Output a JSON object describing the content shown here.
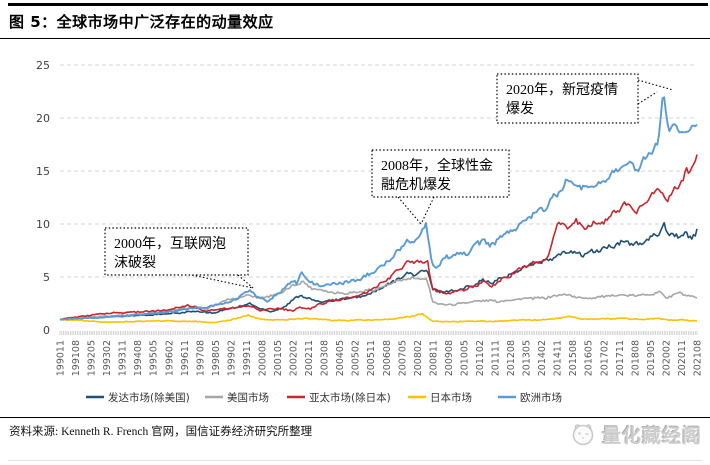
{
  "figure": {
    "title": "图 5：全球市场中广泛存在的动量效应",
    "source_note": "资料来源: Kenneth R. French 官网，国信证券经济研究所整理",
    "watermark": "量化藏经阁"
  },
  "chart_data": {
    "type": "line",
    "title": "全球市场中广泛存在的动量效应",
    "xlabel": "",
    "ylabel": "",
    "ylim": [
      0,
      25
    ],
    "yticks": [
      0,
      5,
      10,
      15,
      20,
      25
    ],
    "grid": "horizontal-dashed",
    "legend_position": "bottom",
    "x_range": [
      1990.917,
      2021.667
    ],
    "x_tick_labels": [
      "199011",
      "199108",
      "199205",
      "199302",
      "199311",
      "199408",
      "199505",
      "199602",
      "199611",
      "199708",
      "199805",
      "199902",
      "199911",
      "200008",
      "200105",
      "200202",
      "200211",
      "200308",
      "200405",
      "200502",
      "200511",
      "200608",
      "200705",
      "200802",
      "200811",
      "200908",
      "201005",
      "201102",
      "201111",
      "201208",
      "201305",
      "201402",
      "201411",
      "201508",
      "201605",
      "201702",
      "201711",
      "201808",
      "201905",
      "202002",
      "202011",
      "202108"
    ],
    "annotations": [
      {
        "text": "2000年，互联网泡沫破裂",
        "lines": [
          "2000年，互联网泡",
          "沫破裂"
        ],
        "target_year": 2000,
        "target_value": 3.9
      },
      {
        "text": "2008年，全球性金融危机爆发",
        "lines": [
          "2008年，全球性金",
          "融危机爆发"
        ],
        "target_year": 2008.5,
        "target_value": 9.9
      },
      {
        "text": "2020年，新冠疫情爆发",
        "lines": [
          "2020年，新冠疫情",
          "爆发"
        ],
        "target_year": 2020.05,
        "target_value": 22.5
      }
    ],
    "series": [
      {
        "name": "发达市场(除美国)",
        "color": "#1F4E79",
        "points": [
          [
            1990.92,
            1.0
          ],
          [
            1992.0,
            1.1
          ],
          [
            1993.0,
            1.25
          ],
          [
            1994.5,
            1.35
          ],
          [
            1996.0,
            1.5
          ],
          [
            1997.4,
            1.75
          ],
          [
            1998.4,
            1.6
          ],
          [
            1998.9,
            2.0
          ],
          [
            1999.5,
            2.1
          ],
          [
            2000.08,
            2.5
          ],
          [
            2000.6,
            2.0
          ],
          [
            2001.1,
            1.75
          ],
          [
            2001.7,
            2.1
          ],
          [
            2002.2,
            2.9
          ],
          [
            2002.55,
            3.3
          ],
          [
            2003.0,
            2.9
          ],
          [
            2003.4,
            2.65
          ],
          [
            2004.2,
            2.85
          ],
          [
            2005.0,
            3.0
          ],
          [
            2005.6,
            3.2
          ],
          [
            2006.2,
            3.7
          ],
          [
            2006.7,
            4.2
          ],
          [
            2007.3,
            4.9
          ],
          [
            2007.8,
            5.4
          ],
          [
            2008.1,
            5.2
          ],
          [
            2008.4,
            5.5
          ],
          [
            2008.65,
            5.7
          ],
          [
            2008.9,
            3.8
          ],
          [
            2009.3,
            3.6
          ],
          [
            2009.9,
            3.7
          ],
          [
            2010.4,
            3.9
          ],
          [
            2011.0,
            4.4
          ],
          [
            2011.35,
            4.7
          ],
          [
            2011.8,
            4.4
          ],
          [
            2012.3,
            5.0
          ],
          [
            2012.8,
            5.3
          ],
          [
            2013.3,
            6.0
          ],
          [
            2013.9,
            6.3
          ],
          [
            2014.4,
            6.5
          ],
          [
            2015.0,
            7.0
          ],
          [
            2015.5,
            7.5
          ],
          [
            2016.1,
            7.1
          ],
          [
            2016.7,
            7.4
          ],
          [
            2017.2,
            7.7
          ],
          [
            2017.8,
            8.0
          ],
          [
            2018.3,
            8.4
          ],
          [
            2018.8,
            8.0
          ],
          [
            2019.3,
            8.5
          ],
          [
            2019.7,
            8.9
          ],
          [
            2019.95,
            9.6
          ],
          [
            2020.05,
            10.2
          ],
          [
            2020.3,
            8.9
          ],
          [
            2020.6,
            9.1
          ],
          [
            2020.9,
            8.8
          ],
          [
            2021.2,
            9.0
          ],
          [
            2021.45,
            8.8
          ],
          [
            2021.67,
            9.3
          ]
        ]
      },
      {
        "name": "美国市场",
        "color": "#A6A6A6",
        "points": [
          [
            1990.92,
            1.0
          ],
          [
            1992.0,
            1.15
          ],
          [
            1993.0,
            1.3
          ],
          [
            1994.5,
            1.45
          ],
          [
            1996.0,
            1.75
          ],
          [
            1997.4,
            2.2
          ],
          [
            1998.0,
            1.95
          ],
          [
            1998.9,
            2.8
          ],
          [
            1999.5,
            3.0
          ],
          [
            2000.1,
            3.35
          ],
          [
            2000.5,
            3.0
          ],
          [
            2001.0,
            3.2
          ],
          [
            2001.6,
            3.5
          ],
          [
            2002.2,
            4.2
          ],
          [
            2002.6,
            4.6
          ],
          [
            2003.0,
            4.0
          ],
          [
            2003.5,
            3.8
          ],
          [
            2004.2,
            3.5
          ],
          [
            2005.0,
            3.5
          ],
          [
            2005.7,
            3.7
          ],
          [
            2006.3,
            3.9
          ],
          [
            2006.8,
            4.3
          ],
          [
            2007.4,
            4.7
          ],
          [
            2007.9,
            4.9
          ],
          [
            2008.3,
            4.7
          ],
          [
            2008.6,
            5.0
          ],
          [
            2008.9,
            2.7
          ],
          [
            2009.3,
            2.4
          ],
          [
            2009.9,
            2.4
          ],
          [
            2010.5,
            2.6
          ],
          [
            2011.0,
            2.7
          ],
          [
            2011.5,
            2.8
          ],
          [
            2012.0,
            2.7
          ],
          [
            2012.5,
            2.8
          ],
          [
            2013.0,
            2.9
          ],
          [
            2013.6,
            3.0
          ],
          [
            2014.2,
            3.0
          ],
          [
            2014.8,
            3.2
          ],
          [
            2015.3,
            3.4
          ],
          [
            2015.8,
            3.1
          ],
          [
            2016.3,
            3.0
          ],
          [
            2016.9,
            3.1
          ],
          [
            2017.5,
            3.2
          ],
          [
            2018.0,
            3.35
          ],
          [
            2018.5,
            3.2
          ],
          [
            2019.0,
            3.3
          ],
          [
            2019.5,
            3.4
          ],
          [
            2019.9,
            3.6
          ],
          [
            2020.2,
            3.0
          ],
          [
            2020.5,
            3.3
          ],
          [
            2020.8,
            3.5
          ],
          [
            2021.1,
            3.3
          ],
          [
            2021.4,
            3.1
          ],
          [
            2021.67,
            3.0
          ]
        ]
      },
      {
        "name": "亚太市场(除日本)",
        "color": "#C9252D",
        "points": [
          [
            1990.92,
            1.0
          ],
          [
            1992.0,
            1.3
          ],
          [
            1993.0,
            1.55
          ],
          [
            1994.5,
            1.7
          ],
          [
            1996.0,
            1.85
          ],
          [
            1997.1,
            2.35
          ],
          [
            1998.0,
            1.75
          ],
          [
            1998.6,
            2.0
          ],
          [
            1999.3,
            2.1
          ],
          [
            2000.05,
            2.35
          ],
          [
            2000.5,
            1.85
          ],
          [
            2001.4,
            2.05
          ],
          [
            2002.1,
            1.8
          ],
          [
            2002.5,
            2.1
          ],
          [
            2003.0,
            2.0
          ],
          [
            2003.5,
            2.5
          ],
          [
            2004.2,
            2.8
          ],
          [
            2004.8,
            3.0
          ],
          [
            2005.5,
            3.3
          ],
          [
            2006.3,
            4.2
          ],
          [
            2006.8,
            4.9
          ],
          [
            2007.4,
            5.9
          ],
          [
            2007.8,
            6.5
          ],
          [
            2008.0,
            6.2
          ],
          [
            2008.2,
            6.6
          ],
          [
            2008.45,
            6.3
          ],
          [
            2008.65,
            6.6
          ],
          [
            2008.9,
            3.9
          ],
          [
            2009.2,
            3.6
          ],
          [
            2009.8,
            3.5
          ],
          [
            2010.4,
            3.8
          ],
          [
            2011.0,
            4.2
          ],
          [
            2011.35,
            4.5
          ],
          [
            2011.7,
            4.1
          ],
          [
            2012.2,
            4.7
          ],
          [
            2012.8,
            5.3
          ],
          [
            2013.3,
            6.0
          ],
          [
            2013.9,
            6.3
          ],
          [
            2014.45,
            6.7
          ],
          [
            2014.9,
            10.0
          ],
          [
            2015.2,
            10.1
          ],
          [
            2015.45,
            9.6
          ],
          [
            2015.8,
            10.3
          ],
          [
            2016.2,
            9.5
          ],
          [
            2016.6,
            10.0
          ],
          [
            2017.0,
            10.1
          ],
          [
            2017.4,
            10.6
          ],
          [
            2017.8,
            11.3
          ],
          [
            2018.25,
            11.9
          ],
          [
            2018.7,
            11.1
          ],
          [
            2019.1,
            12.0
          ],
          [
            2019.5,
            12.8
          ],
          [
            2019.9,
            13.2
          ],
          [
            2020.25,
            12.1
          ],
          [
            2020.5,
            13.0
          ],
          [
            2020.8,
            13.8
          ],
          [
            2021.0,
            14.3
          ],
          [
            2021.15,
            15.1
          ],
          [
            2021.3,
            14.4
          ],
          [
            2021.45,
            15.4
          ],
          [
            2021.55,
            16.3
          ],
          [
            2021.67,
            16.6
          ]
        ]
      },
      {
        "name": "日本市场",
        "color": "#FFC000",
        "points": [
          [
            1990.92,
            1.0
          ],
          [
            1992.0,
            0.9
          ],
          [
            1993.0,
            0.72
          ],
          [
            1994.5,
            0.8
          ],
          [
            1995.5,
            0.85
          ],
          [
            1996.5,
            0.85
          ],
          [
            1997.5,
            0.8
          ],
          [
            1998.4,
            0.7
          ],
          [
            1999.2,
            0.95
          ],
          [
            2000.0,
            1.4
          ],
          [
            2000.6,
            1.0
          ],
          [
            2001.3,
            0.95
          ],
          [
            2002.0,
            1.0
          ],
          [
            2002.7,
            1.1
          ],
          [
            2003.3,
            1.05
          ],
          [
            2004.0,
            0.9
          ],
          [
            2004.8,
            0.9
          ],
          [
            2005.6,
            0.95
          ],
          [
            2006.4,
            0.95
          ],
          [
            2007.2,
            1.1
          ],
          [
            2007.9,
            1.3
          ],
          [
            2008.4,
            1.55
          ],
          [
            2008.9,
            0.85
          ],
          [
            2009.5,
            0.78
          ],
          [
            2010.3,
            0.8
          ],
          [
            2011.0,
            0.85
          ],
          [
            2012.0,
            0.8
          ],
          [
            2013.0,
            0.95
          ],
          [
            2014.0,
            0.95
          ],
          [
            2015.0,
            1.1
          ],
          [
            2015.5,
            1.25
          ],
          [
            2016.2,
            1.0
          ],
          [
            2017.0,
            1.05
          ],
          [
            2018.0,
            1.1
          ],
          [
            2019.0,
            1.0
          ],
          [
            2019.8,
            1.1
          ],
          [
            2020.3,
            0.95
          ],
          [
            2021.0,
            0.95
          ],
          [
            2021.67,
            0.85
          ]
        ]
      },
      {
        "name": "欧洲市场",
        "color": "#5B9BD5",
        "points": [
          [
            1990.92,
            1.0
          ],
          [
            1992.0,
            1.1
          ],
          [
            1993.0,
            1.2
          ],
          [
            1994.5,
            1.4
          ],
          [
            1996.0,
            1.65
          ],
          [
            1997.4,
            2.1
          ],
          [
            1998.0,
            2.05
          ],
          [
            1998.4,
            2.4
          ],
          [
            1999.0,
            2.6
          ],
          [
            1999.5,
            3.0
          ],
          [
            2000.08,
            3.85
          ],
          [
            2000.5,
            3.0
          ],
          [
            2001.0,
            2.75
          ],
          [
            2001.6,
            3.7
          ],
          [
            2002.2,
            4.7
          ],
          [
            2002.35,
            4.25
          ],
          [
            2002.55,
            5.4
          ],
          [
            2003.0,
            4.6
          ],
          [
            2003.4,
            4.15
          ],
          [
            2004.2,
            4.35
          ],
          [
            2005.0,
            4.6
          ],
          [
            2005.5,
            4.9
          ],
          [
            2006.0,
            5.4
          ],
          [
            2006.5,
            6.0
          ],
          [
            2007.0,
            7.0
          ],
          [
            2007.5,
            7.9
          ],
          [
            2007.7,
            8.7
          ],
          [
            2007.95,
            8.1
          ],
          [
            2008.3,
            9.2
          ],
          [
            2008.6,
            9.9
          ],
          [
            2008.85,
            6.5
          ],
          [
            2009.1,
            5.8
          ],
          [
            2009.6,
            6.9
          ],
          [
            2010.2,
            7.3
          ],
          [
            2010.6,
            7.1
          ],
          [
            2011.0,
            8.0
          ],
          [
            2011.35,
            8.6
          ],
          [
            2011.7,
            7.9
          ],
          [
            2012.2,
            8.8
          ],
          [
            2012.7,
            9.4
          ],
          [
            2013.2,
            10.1
          ],
          [
            2013.8,
            10.9
          ],
          [
            2014.3,
            11.5
          ],
          [
            2014.9,
            12.8
          ],
          [
            2015.4,
            14.2
          ],
          [
            2016.1,
            13.3
          ],
          [
            2016.8,
            13.7
          ],
          [
            2017.3,
            14.3
          ],
          [
            2017.8,
            15.0
          ],
          [
            2018.3,
            15.7
          ],
          [
            2018.8,
            15.2
          ],
          [
            2019.4,
            16.8
          ],
          [
            2019.8,
            17.8
          ],
          [
            2020.05,
            22.5
          ],
          [
            2020.3,
            18.8
          ],
          [
            2020.55,
            19.3
          ],
          [
            2020.8,
            18.6
          ],
          [
            2021.0,
            19.0
          ],
          [
            2021.2,
            18.7
          ],
          [
            2021.45,
            19.1
          ],
          [
            2021.67,
            19.6
          ]
        ]
      }
    ]
  }
}
